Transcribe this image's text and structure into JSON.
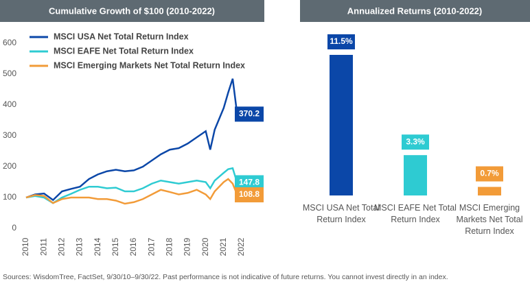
{
  "chart_data": [
    {
      "type": "line",
      "title": "Cumulative Growth of $100 (2010-2022)",
      "x": [
        2010,
        2010.5,
        2011,
        2011.5,
        2012,
        2012.5,
        2013,
        2013.5,
        2014,
        2014.5,
        2015,
        2015.5,
        2016,
        2016.5,
        2017,
        2017.5,
        2018,
        2018.5,
        2019,
        2019.5,
        2020,
        2020.25,
        2020.5,
        2021,
        2021.25,
        2021.5,
        2021.75
      ],
      "series": [
        {
          "name": "MSCI USA Net Total Return Index",
          "color": "#0b47a8",
          "values": [
            100,
            110,
            113,
            92,
            120,
            128,
            135,
            160,
            175,
            185,
            190,
            185,
            188,
            200,
            220,
            240,
            255,
            260,
            275,
            295,
            315,
            255,
            320,
            390,
            440,
            485,
            370.2
          ]
        },
        {
          "name": "MSCI EAFE Net Total Return Index",
          "color": "#2ecbd2",
          "values": [
            100,
            105,
            100,
            82,
            100,
            112,
            125,
            135,
            135,
            130,
            132,
            120,
            120,
            130,
            145,
            155,
            150,
            145,
            150,
            155,
            150,
            130,
            155,
            180,
            192,
            195,
            147.8
          ]
        },
        {
          "name": "MSCI Emerging Markets Net Total Return Index",
          "color": "#f29b38",
          "values": [
            100,
            108,
            105,
            82,
            95,
            100,
            100,
            100,
            95,
            95,
            90,
            80,
            85,
            95,
            110,
            125,
            118,
            110,
            115,
            125,
            110,
            95,
            120,
            150,
            160,
            145,
            108.8
          ]
        }
      ],
      "xlim": [
        2010,
        2022
      ],
      "xticks": [
        2010,
        2011,
        2012,
        2013,
        2014,
        2015,
        2016,
        2017,
        2018,
        2019,
        2020,
        2021,
        2022
      ],
      "ylim": [
        0,
        600
      ],
      "yticks": [
        0,
        100,
        200,
        300,
        400,
        500,
        600
      ]
    },
    {
      "type": "bar",
      "title": "Annualized Returns (2010-2022)",
      "categories": [
        "MSCI USA Net Total Return Index",
        "MSCI EAFE Net Total Return Index",
        "MSCI Emerging Markets Net Total Return Index"
      ],
      "values": [
        11.5,
        3.3,
        0.7
      ],
      "value_labels": [
        "11.5%",
        "3.3%",
        "0.7%"
      ],
      "colors": [
        "#0b47a8",
        "#2ecbd2",
        "#f29b38"
      ]
    }
  ],
  "footnote": "Sources: WisdomTree, FactSet, 9/30/10–9/30/22. Past performance is not indicative of future returns. You cannot invest directly in an index."
}
